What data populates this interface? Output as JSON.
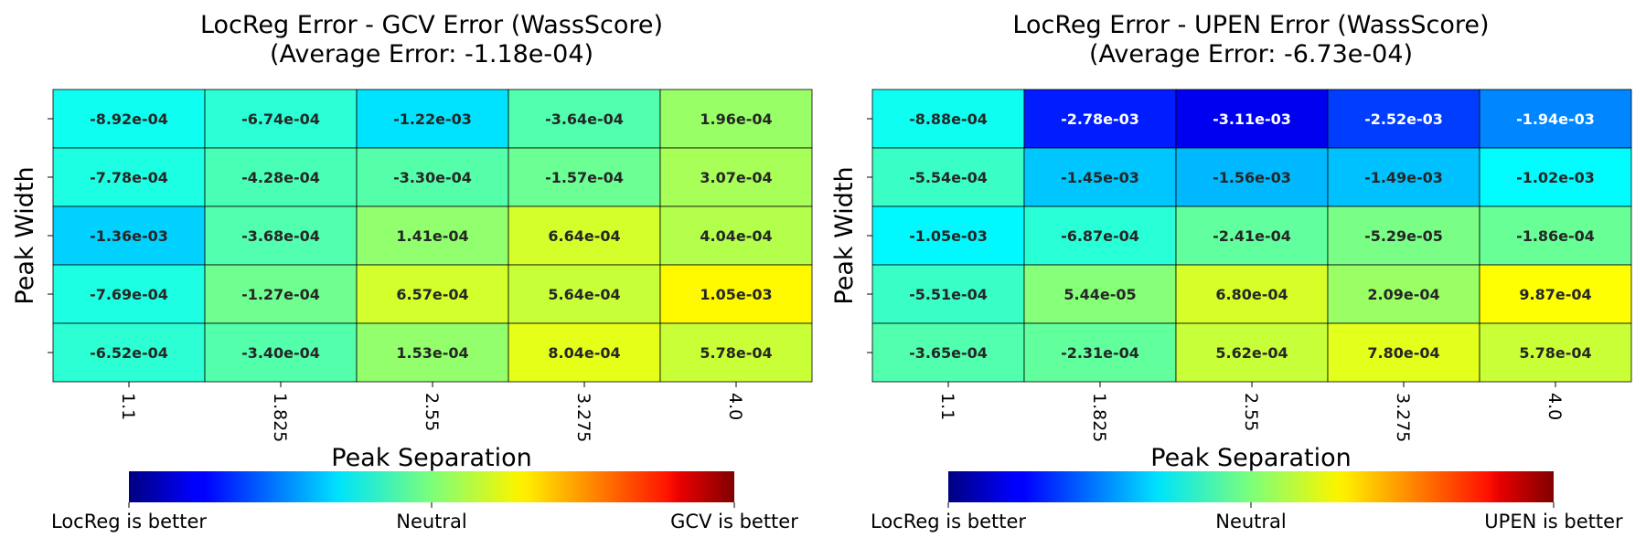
{
  "chart_data": [
    {
      "type": "heatmap",
      "title": "LocReg Error - GCV Error (WassScore)",
      "subtitle": "(Average Error: -1.18e-04)",
      "xlabel": "Peak Separation",
      "ylabel": "Peak Width",
      "x_ticks": [
        "1.1",
        "1.825",
        "2.55",
        "3.275",
        "4.0"
      ],
      "y_ticks": [
        "",
        "",
        "",
        "",
        ""
      ],
      "value_labels": [
        [
          "-8.92e-04",
          "-6.74e-04",
          "-1.22e-03",
          "-3.64e-04",
          "1.96e-04"
        ],
        [
          "-7.78e-04",
          "-4.28e-04",
          "-3.30e-04",
          "-1.57e-04",
          "3.07e-04"
        ],
        [
          "-1.36e-03",
          "-3.68e-04",
          "1.41e-04",
          "6.64e-04",
          "4.04e-04"
        ],
        [
          "-7.69e-04",
          "-1.27e-04",
          "6.57e-04",
          "5.64e-04",
          "1.05e-03"
        ],
        [
          "-6.52e-04",
          "-3.40e-04",
          "1.53e-04",
          "8.04e-04",
          "5.78e-04"
        ]
      ],
      "values": [
        [
          -0.000892,
          -0.000674,
          -0.00122,
          -0.000364,
          0.000196
        ],
        [
          -0.000778,
          -0.000428,
          -0.00033,
          -0.000157,
          0.000307
        ],
        [
          -0.00136,
          -0.000368,
          0.000141,
          0.000664,
          0.000404
        ],
        [
          -0.000769,
          -0.000127,
          0.000657,
          0.000564,
          0.00105
        ],
        [
          -0.000652,
          -0.00034,
          0.000153,
          0.000804,
          0.000578
        ]
      ],
      "colormap": "jet",
      "vrange": [
        -0.004,
        0.004
      ],
      "colorbar": {
        "orientation": "horizontal",
        "labels": [
          "LocReg is better",
          "Neutral",
          "GCV is better"
        ]
      },
      "grid": true
    },
    {
      "type": "heatmap",
      "title": "LocReg Error - UPEN Error (WassScore)",
      "subtitle": "(Average Error: -6.73e-04)",
      "xlabel": "Peak Separation",
      "ylabel": "Peak Width",
      "x_ticks": [
        "1.1",
        "1.825",
        "2.55",
        "3.275",
        "4.0"
      ],
      "y_ticks": [
        "",
        "",
        "",
        "",
        ""
      ],
      "value_labels": [
        [
          "-8.88e-04",
          "-2.78e-03",
          "-3.11e-03",
          "-2.52e-03",
          "-1.94e-03"
        ],
        [
          "-5.54e-04",
          "-1.45e-03",
          "-1.56e-03",
          "-1.49e-03",
          "-1.02e-03"
        ],
        [
          "-1.05e-03",
          "-6.87e-04",
          "-2.41e-04",
          "-5.29e-05",
          "-1.86e-04"
        ],
        [
          "-5.51e-04",
          "5.44e-05",
          "6.80e-04",
          "2.09e-04",
          "9.87e-04"
        ],
        [
          "-3.65e-04",
          "-2.31e-04",
          "5.62e-04",
          "7.80e-04",
          "5.78e-04"
        ]
      ],
      "values": [
        [
          -0.000888,
          -0.00278,
          -0.00311,
          -0.00252,
          -0.00194
        ],
        [
          -0.000554,
          -0.00145,
          -0.00156,
          -0.00149,
          -0.00102
        ],
        [
          -0.00105,
          -0.000687,
          -0.000241,
          -5.29e-05,
          -0.000186
        ],
        [
          -0.000551,
          5.44e-05,
          0.00068,
          0.000209,
          0.000987
        ],
        [
          -0.000365,
          -0.000231,
          0.000562,
          0.00078,
          0.000578
        ]
      ],
      "colormap": "jet",
      "vrange": [
        -0.004,
        0.004
      ],
      "colorbar": {
        "orientation": "horizontal",
        "labels": [
          "LocReg is better",
          "Neutral",
          "UPEN is better"
        ]
      },
      "grid": true
    }
  ]
}
